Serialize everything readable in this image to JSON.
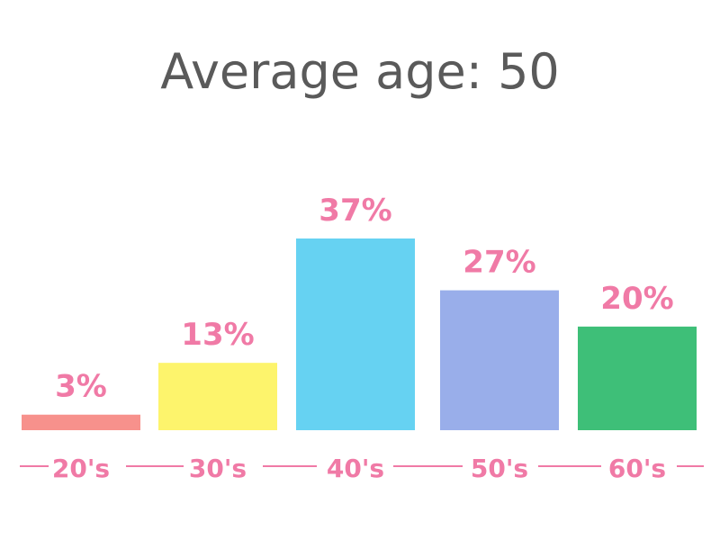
{
  "colors": {
    "title": "#5a5a5a",
    "label": "#f07aa6",
    "axis": "#f07aa6"
  },
  "chart_data": {
    "type": "bar",
    "title": "Average age: 50",
    "categories": [
      "20's",
      "30's",
      "40's",
      "50's",
      "60's"
    ],
    "values": [
      3,
      13,
      37,
      27,
      20
    ],
    "value_labels": [
      "3%",
      "13%",
      "37%",
      "27%",
      "20%"
    ],
    "bar_colors": [
      "#f7918c",
      "#fdf46c",
      "#66d2f2",
      "#99aeea",
      "#3ebf78"
    ],
    "ylim": [
      0,
      37
    ],
    "xlabel": "",
    "ylabel": "",
    "grid": false,
    "legend": "none"
  }
}
